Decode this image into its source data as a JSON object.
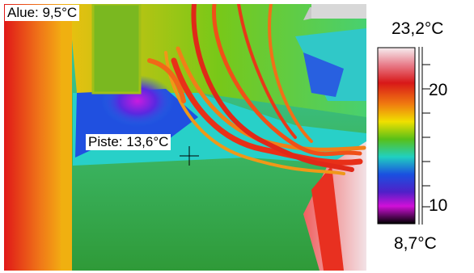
{
  "thermal_image": {
    "area_label": "Alue: 9,5°C",
    "spot_label": "Piste: 13,6°C"
  },
  "scale": {
    "max": "23,2°C",
    "min": "8,7°C",
    "tick_labels": [
      "20",
      "10"
    ]
  },
  "colors": {
    "hot": "#f4e6ea",
    "warm": "#e6201c",
    "mid": "#f0e600",
    "cool": "#25c8c0",
    "cold": "#1a40d8",
    "coldest": "#c000d8"
  }
}
